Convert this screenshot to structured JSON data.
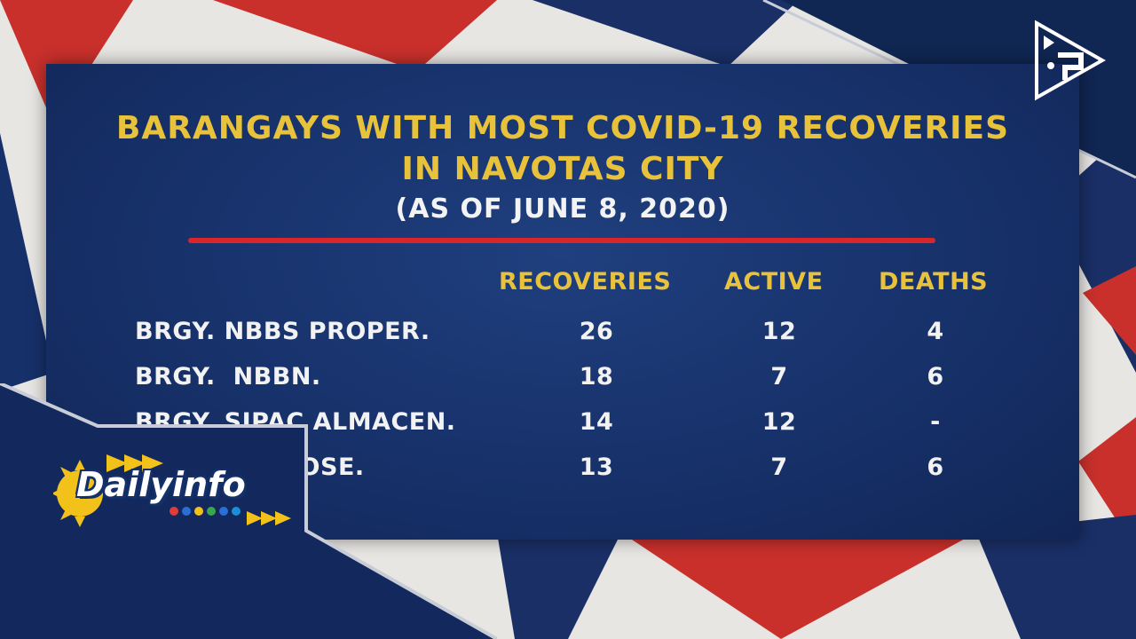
{
  "graphic": {
    "title_line1": "BARANGAYS WITH MOST COVID-19 RECOVERIES",
    "title_line2": "IN NAVOTAS CITY",
    "subtitle": "(AS OF JUNE 8, 2020)",
    "columns": [
      "RECOVERIES",
      "ACTIVE",
      "DEATHS"
    ],
    "rows": [
      {
        "name": "BRGY. NBBS PROPER.",
        "recoveries": "26",
        "active": "12",
        "deaths": "4"
      },
      {
        "name": "BRGY.  NBBN.",
        "recoveries": "18",
        "active": "7",
        "deaths": "6"
      },
      {
        "name": "BRGY. SIPAC ALMACEN.",
        "recoveries": "14",
        "active": "12",
        "deaths": "-"
      },
      {
        "name": "BRGY. SAN JOSE.",
        "recoveries": "13",
        "active": "7",
        "deaths": "6"
      }
    ]
  },
  "overlay": {
    "brand_text": "Dailyinfo",
    "ptv_logo_icon": "ptv-logo-icon"
  },
  "colors": {
    "board": "#17316a",
    "title_gold": "#e8c23a",
    "rule_red": "#d8262b",
    "overlay_navy": "#13285c"
  }
}
